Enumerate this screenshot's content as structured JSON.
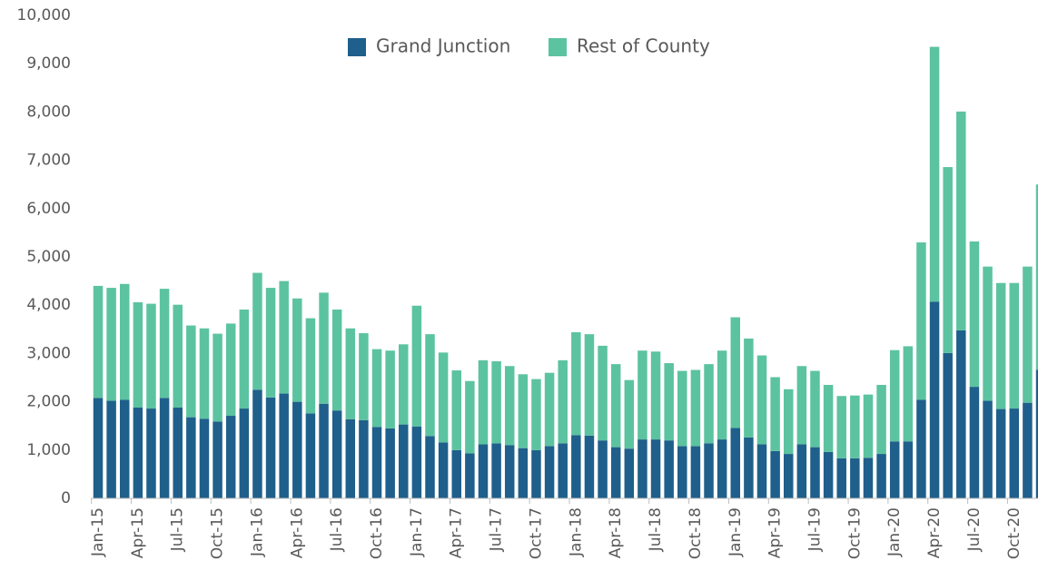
{
  "chart_data": {
    "type": "stacked_bar",
    "categories": [
      "Jan-15",
      null,
      null,
      "Apr-15",
      null,
      null,
      "Jul-15",
      null,
      null,
      "Oct-15",
      null,
      null,
      "Jan-16",
      null,
      null,
      "Apr-16",
      null,
      null,
      "Jul-16",
      null,
      null,
      "Oct-16",
      null,
      null,
      "Jan-17",
      null,
      null,
      "Apr-17",
      null,
      null,
      "Jul-17",
      null,
      null,
      "Oct-17",
      null,
      null,
      "Jan-18",
      null,
      null,
      "Apr-18",
      null,
      null,
      "Jul-18",
      null,
      null,
      "Oct-18",
      null,
      null,
      "Jan-19",
      null,
      null,
      "Apr-19",
      null,
      null,
      "Jul-19",
      null,
      null,
      "Oct-19",
      null,
      null,
      "Jan-20",
      null,
      null,
      "Apr-20",
      null,
      null,
      "Jul-20",
      null,
      null,
      "Oct-20",
      null,
      null
    ],
    "series": [
      {
        "name": "Grand Junction",
        "color": "#1f5f8b",
        "values": [
          2080,
          2020,
          2040,
          1880,
          1860,
          2080,
          1880,
          1680,
          1650,
          1590,
          1710,
          1860,
          2250,
          2090,
          2170,
          2000,
          1760,
          1960,
          1820,
          1640,
          1620,
          1480,
          1450,
          1530,
          1490,
          1290,
          1160,
          1000,
          930,
          1120,
          1140,
          1100,
          1040,
          1000,
          1080,
          1140,
          1310,
          1300,
          1200,
          1060,
          1030,
          1220,
          1220,
          1200,
          1080,
          1080,
          1140,
          1220,
          1460,
          1260,
          1120,
          980,
          920,
          1120,
          1060,
          960,
          830,
          830,
          840,
          920,
          1180,
          1180,
          2040,
          4070,
          3010,
          3480,
          2310,
          2020,
          1850,
          1860,
          1980,
          2660
        ]
      },
      {
        "name": "Rest of County",
        "color": "#5cc3a0",
        "values": [
          2320,
          2340,
          2400,
          2180,
          2170,
          2260,
          2130,
          1900,
          1870,
          1820,
          1910,
          2050,
          2420,
          2270,
          2330,
          2140,
          1970,
          2300,
          2090,
          1880,
          1800,
          1610,
          1610,
          1660,
          2500,
          2110,
          1860,
          1650,
          1500,
          1740,
          1700,
          1640,
          1530,
          1470,
          1520,
          1720,
          2130,
          2100,
          1960,
          1720,
          1420,
          1840,
          1820,
          1600,
          1560,
          1580,
          1640,
          1840,
          2290,
          2050,
          1840,
          1530,
          1340,
          1620,
          1580,
          1390,
          1290,
          1300,
          1310,
          1430,
          1890,
          1970,
          3260,
          5280,
          3850,
          4530,
          3010,
          2780,
          2610,
          2600,
          2820,
          3840
        ]
      }
    ],
    "ylim": [
      0,
      10000
    ],
    "yticks": [
      0,
      {
        "value": 1000,
        "label": "1,000"
      },
      {
        "value": 2000,
        "label": "2,000"
      },
      {
        "value": 3000,
        "label": "3,000"
      },
      {
        "value": 4000,
        "label": "4,000"
      },
      {
        "value": 5000,
        "label": "5,000"
      },
      {
        "value": 6000,
        "label": "6,000"
      },
      {
        "value": 7000,
        "label": "7,000"
      },
      {
        "value": 8000,
        "label": "8,000"
      },
      {
        "value": 9000,
        "label": "9,000"
      },
      {
        "value": 10000,
        "label": "10,000"
      }
    ],
    "legend": "top",
    "grid": false
  }
}
